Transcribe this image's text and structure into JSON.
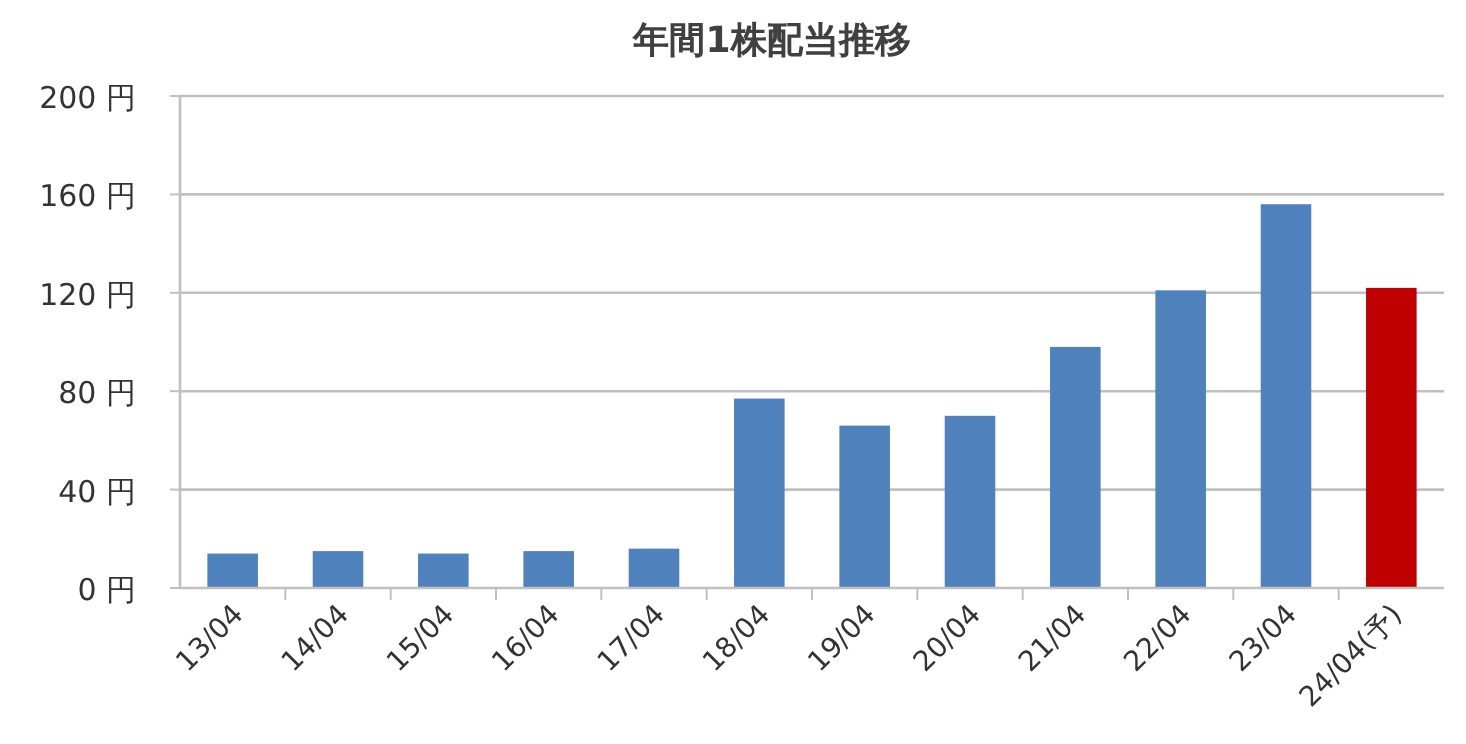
{
  "chart_data": {
    "type": "bar",
    "title": "年間1株配当推移",
    "categories": [
      "13/04",
      "14/04",
      "15/04",
      "16/04",
      "17/04",
      "18/04",
      "19/04",
      "20/04",
      "21/04",
      "22/04",
      "23/04",
      "24/04(予)"
    ],
    "values": [
      14,
      15,
      14,
      15,
      16,
      77,
      66,
      70,
      98,
      121,
      156,
      122
    ],
    "colors": [
      "#4f81bd",
      "#4f81bd",
      "#4f81bd",
      "#4f81bd",
      "#4f81bd",
      "#4f81bd",
      "#4f81bd",
      "#4f81bd",
      "#4f81bd",
      "#4f81bd",
      "#4f81bd",
      "#c00000"
    ],
    "ylim": [
      0,
      200
    ],
    "yticks": [
      {
        "value": 0,
        "label": "0 円"
      },
      {
        "value": 40,
        "label": "40 円"
      },
      {
        "value": 80,
        "label": "80 円"
      },
      {
        "value": 120,
        "label": "120 円"
      },
      {
        "value": 160,
        "label": "160 円"
      },
      {
        "value": 200,
        "label": "200 円"
      }
    ],
    "grid": "y"
  }
}
